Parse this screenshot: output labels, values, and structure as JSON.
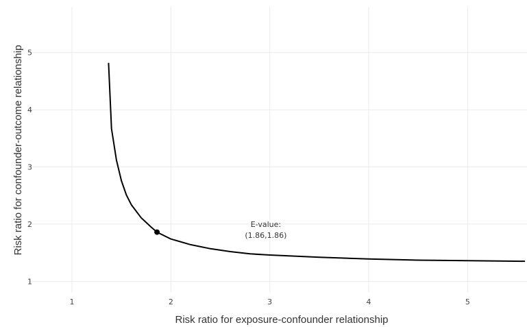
{
  "chart_data": {
    "type": "line",
    "title": "",
    "xlabel": "Risk ratio for exposure-confounder relationship",
    "ylabel": "Risk ratio for confounder-outcome relationship",
    "xlim": [
      0.55,
      5.6
    ],
    "ylim": [
      0.8,
      5.8
    ],
    "x_ticks": [
      1,
      2,
      3,
      4,
      5
    ],
    "y_ticks": [
      1,
      2,
      3,
      4,
      5
    ],
    "grid": true,
    "legend": "none",
    "series": [
      {
        "color": "#000000",
        "x": [
          1.37,
          1.4,
          1.45,
          1.5,
          1.55,
          1.6,
          1.7,
          1.8,
          1.86,
          2.0,
          2.2,
          2.4,
          2.6,
          2.8,
          3.0,
          3.5,
          4.0,
          4.5,
          5.0,
          5.58
        ],
        "y": [
          4.82,
          3.67,
          3.12,
          2.76,
          2.51,
          2.34,
          2.11,
          1.95,
          1.86,
          1.74,
          1.64,
          1.57,
          1.52,
          1.48,
          1.46,
          1.42,
          1.39,
          1.37,
          1.36,
          1.35
        ]
      }
    ],
    "points": [
      {
        "x": 1.86,
        "y": 1.86,
        "color": "#000000"
      }
    ],
    "annotations": [
      {
        "line1": "E-value:",
        "line2": "(1.86,1.86)",
        "x": 2.96,
        "y": 1.95
      }
    ]
  }
}
